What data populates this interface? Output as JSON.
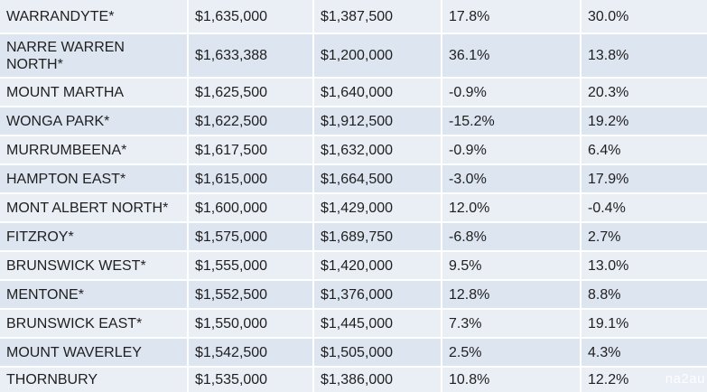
{
  "rows": [
    {
      "suburb": "WARRANDYTE*",
      "price_a": "$1,635,000",
      "price_b": "$1,387,500",
      "change_a": "17.8%",
      "change_b": "30.0%"
    },
    {
      "suburb": "NARRE WARREN NORTH*",
      "price_a": "$1,633,388",
      "price_b": "$1,200,000",
      "change_a": "36.1%",
      "change_b": "13.8%"
    },
    {
      "suburb": "MOUNT MARTHA",
      "price_a": "$1,625,500",
      "price_b": "$1,640,000",
      "change_a": "-0.9%",
      "change_b": "20.3%"
    },
    {
      "suburb": "WONGA PARK*",
      "price_a": "$1,622,500",
      "price_b": "$1,912,500",
      "change_a": "-15.2%",
      "change_b": "19.2%"
    },
    {
      "suburb": "MURRUMBEENA*",
      "price_a": "$1,617,500",
      "price_b": "$1,632,000",
      "change_a": "-0.9%",
      "change_b": "6.4%"
    },
    {
      "suburb": "HAMPTON EAST*",
      "price_a": "$1,615,000",
      "price_b": "$1,664,500",
      "change_a": "-3.0%",
      "change_b": "17.9%"
    },
    {
      "suburb": "MONT ALBERT NORTH*",
      "price_a": "$1,600,000",
      "price_b": "$1,429,000",
      "change_a": "12.0%",
      "change_b": "-0.4%"
    },
    {
      "suburb": "FITZROY*",
      "price_a": "$1,575,000",
      "price_b": "$1,689,750",
      "change_a": "-6.8%",
      "change_b": "2.7%"
    },
    {
      "suburb": "BRUNSWICK WEST*",
      "price_a": "$1,555,000",
      "price_b": "$1,420,000",
      "change_a": "9.5%",
      "change_b": "13.0%"
    },
    {
      "suburb": "MENTONE*",
      "price_a": "$1,552,500",
      "price_b": "$1,376,000",
      "change_a": "12.8%",
      "change_b": "8.8%"
    },
    {
      "suburb": "BRUNSWICK EAST*",
      "price_a": "$1,550,000",
      "price_b": "$1,445,000",
      "change_a": "7.3%",
      "change_b": "19.1%"
    },
    {
      "suburb": "MOUNT WAVERLEY",
      "price_a": "$1,542,500",
      "price_b": "$1,505,000",
      "change_a": "2.5%",
      "change_b": "4.3%"
    },
    {
      "suburb": "THORNBURY",
      "price_a": "$1,535,000",
      "price_b": "$1,386,000",
      "change_a": "10.8%",
      "change_b": "12.2%"
    }
  ],
  "watermark": "na2au",
  "colors": {
    "row_light": "#eaeff6",
    "row_dark": "#dde5f0",
    "text": "#1f1f1f"
  }
}
